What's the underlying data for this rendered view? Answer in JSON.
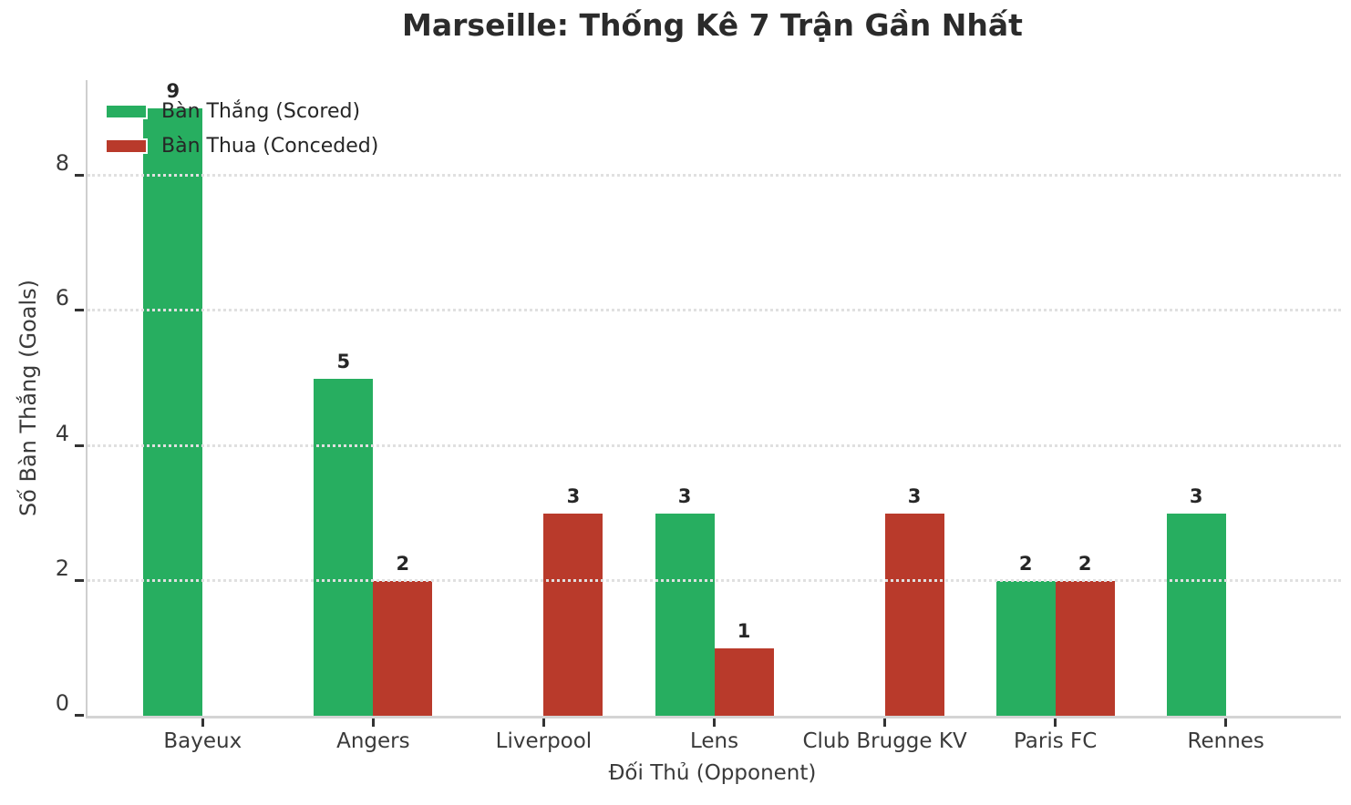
{
  "title": "Marseille: Thống Kê 7 Trận Gần Nhất",
  "chart_data": {
    "type": "bar",
    "title": "Marseille: Thống Kê 7 Trận Gần Nhất",
    "categories": [
      "Bayeux",
      "Angers",
      "Liverpool",
      "Lens",
      "Club Brugge KV",
      "Paris FC",
      "Rennes"
    ],
    "series": [
      {
        "name": "Bàn Thắng (Scored)",
        "color": "#27ae60",
        "values": [
          9,
          5,
          0,
          3,
          0,
          2,
          3
        ]
      },
      {
        "name": "Bàn Thua (Conceded)",
        "color": "#b93a2b",
        "values": [
          0,
          2,
          3,
          1,
          3,
          2,
          0
        ]
      }
    ],
    "xlabel": "Đối Thủ (Opponent)",
    "ylabel": "Số Bàn Thắng (Goals)",
    "ylim": [
      0,
      9.42
    ],
    "yticks": [
      0,
      2,
      4,
      6,
      8
    ],
    "grid": "horizontal-dotted",
    "legend_position": "upper-left",
    "bar_value_labels": true,
    "zero_value_bars_hidden": true
  },
  "colors": {
    "scored": "#27ae60",
    "conceded": "#b93a2b",
    "grid": "#e0e0e0",
    "spine": "#d4d4d4",
    "tick": "#333333",
    "tick_text": "#3a3a3a",
    "title_text": "#2b2b2b",
    "value_label_text": "#262626"
  }
}
